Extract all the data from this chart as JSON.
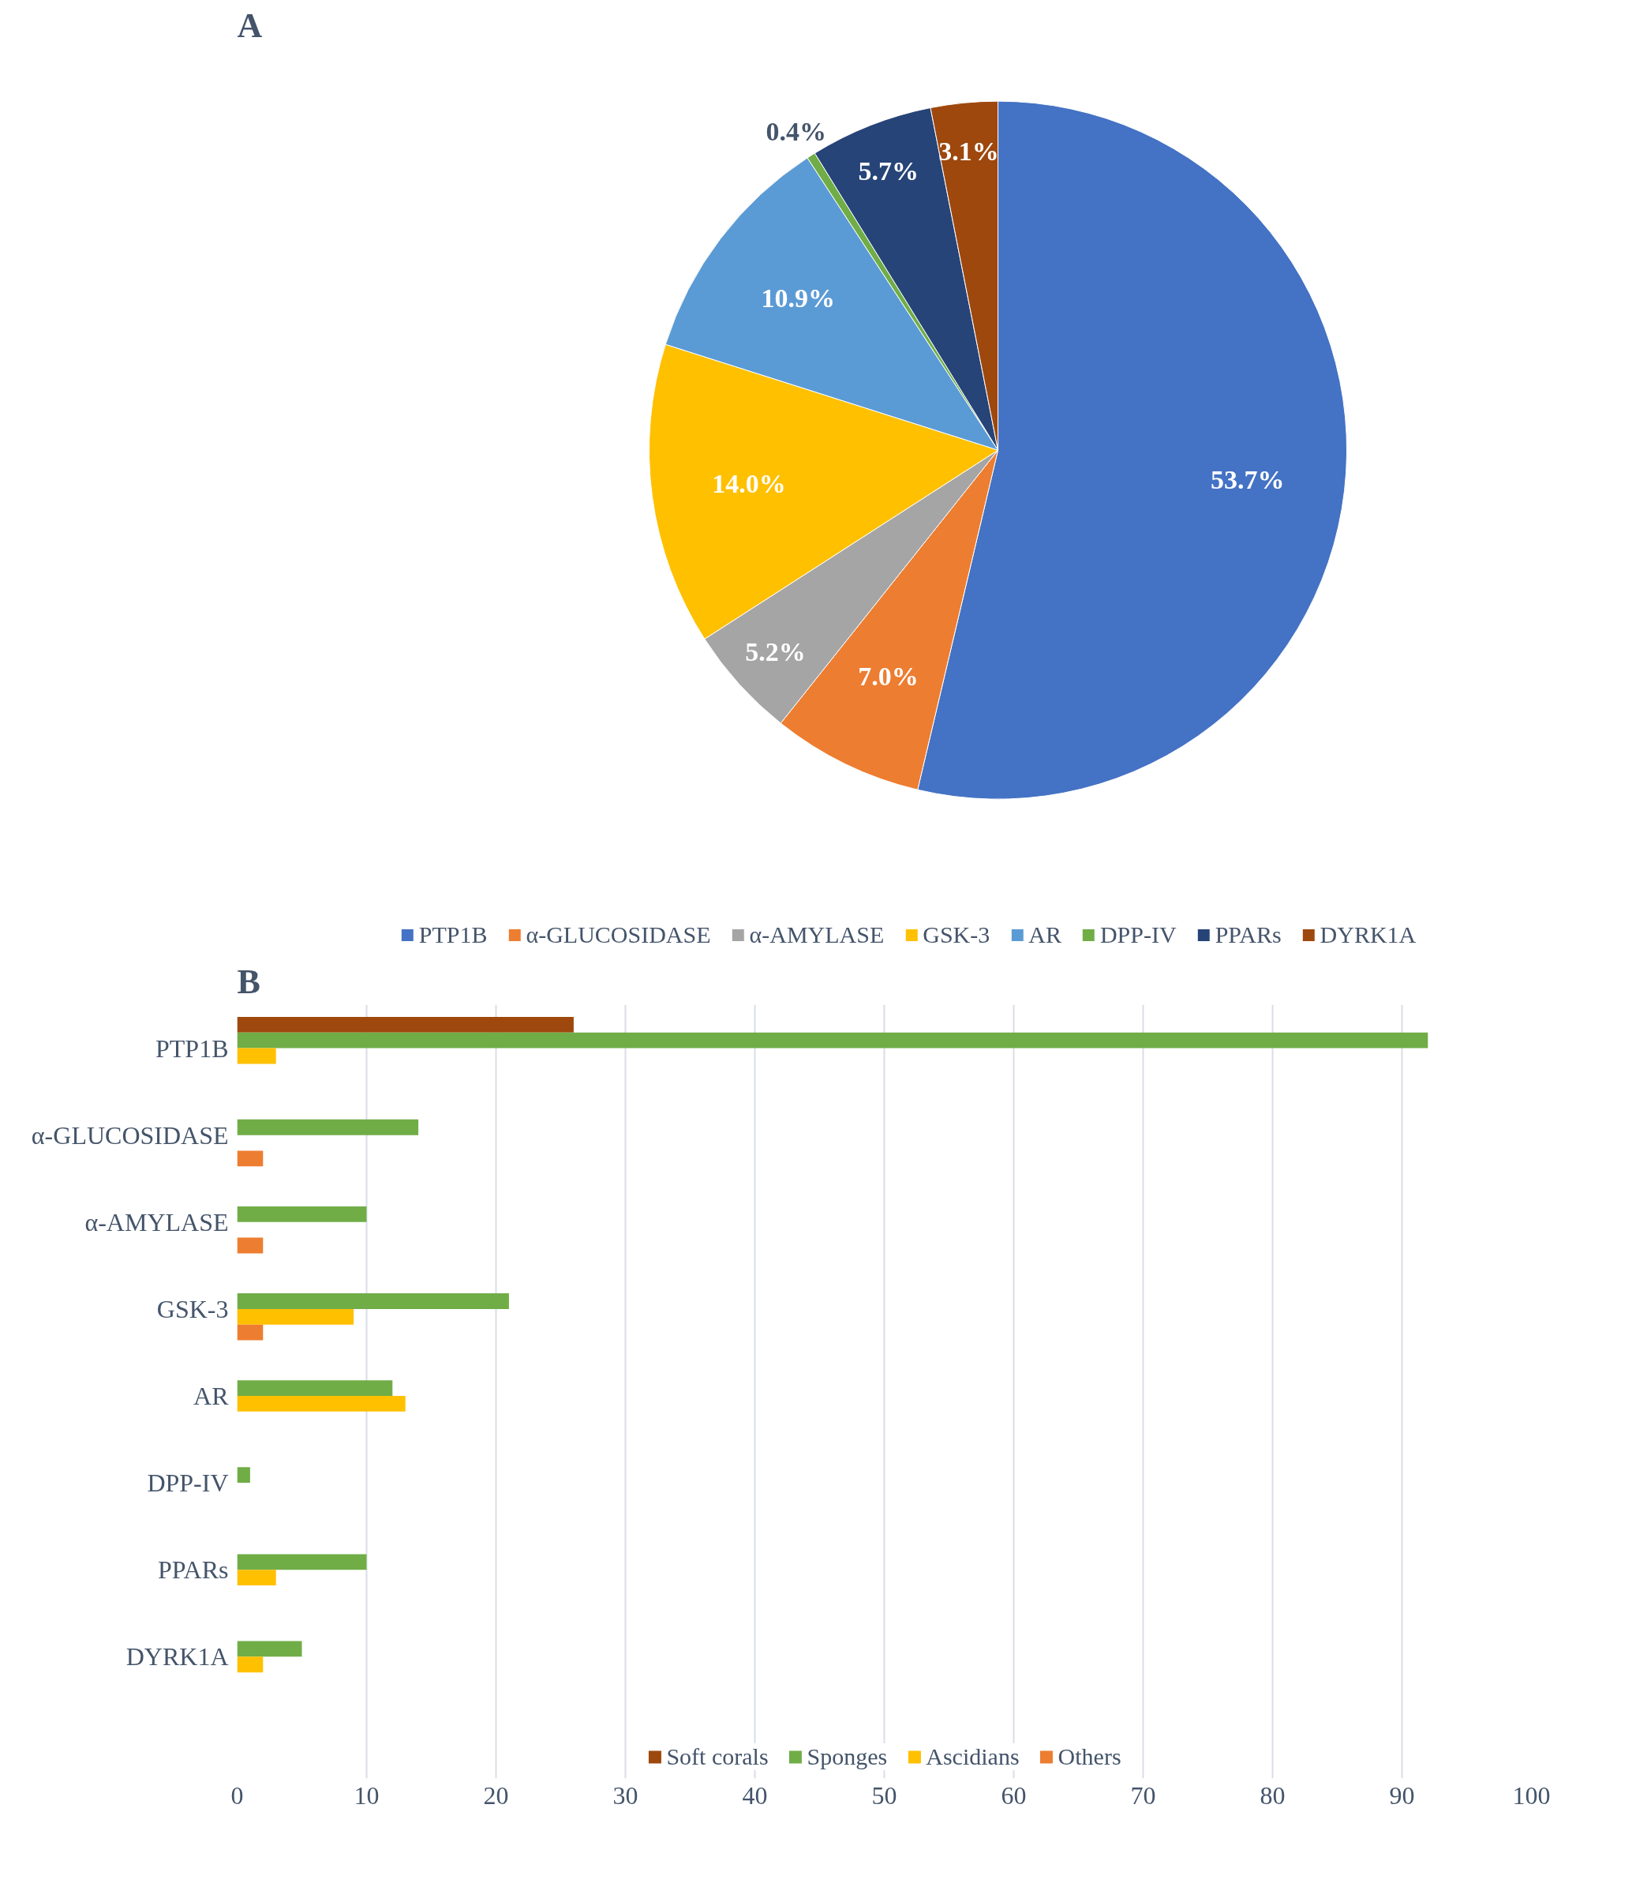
{
  "chart_data": [
    {
      "type": "pie",
      "title": "A",
      "categories": [
        "PTP1B",
        "α-GLUCOSIDASE",
        "α-AMYLASE",
        "GSK-3",
        "AR",
        "DPP-IV",
        "PPARs",
        "DYRK1A"
      ],
      "values": [
        53.7,
        7.0,
        5.2,
        14.0,
        10.9,
        0.4,
        5.7,
        3.1
      ],
      "colors": [
        "#4472c4",
        "#ed7d31",
        "#a5a5a5",
        "#ffc000",
        "#5b9bd5",
        "#70ad47",
        "#264478",
        "#9e480e"
      ],
      "value_labels": [
        "53.7%",
        "7.0%",
        "5.2%",
        "14.0%",
        "10.9%",
        "0.4%",
        "5.7%",
        "3.1%"
      ],
      "legend": "bottom"
    },
    {
      "type": "bar",
      "title": "B",
      "orientation": "horizontal",
      "categories": [
        "PTP1B",
        "α-GLUCOSIDASE",
        "α-AMYLASE",
        "GSK-3",
        "AR",
        "DPP-IV",
        "PPARs",
        "DYRK1A"
      ],
      "series": [
        {
          "name": "Soft corals",
          "color": "#9e480e",
          "values": [
            26,
            null,
            null,
            null,
            null,
            null,
            null,
            null
          ]
        },
        {
          "name": "Sponges",
          "color": "#70ad47",
          "values": [
            92,
            14,
            10,
            21,
            12,
            1,
            10,
            5
          ]
        },
        {
          "name": "Ascidians",
          "color": "#ffc000",
          "values": [
            3,
            null,
            null,
            9,
            13,
            null,
            3,
            2
          ]
        },
        {
          "name": "Others",
          "color": "#ed7d31",
          "values": [
            null,
            2,
            2,
            2,
            null,
            null,
            null,
            null
          ]
        }
      ],
      "xlim": [
        0,
        100
      ],
      "xticks": [
        0,
        10,
        20,
        30,
        40,
        50,
        60,
        70,
        80,
        90,
        100
      ],
      "grid": "x",
      "legend": "bottom"
    }
  ]
}
